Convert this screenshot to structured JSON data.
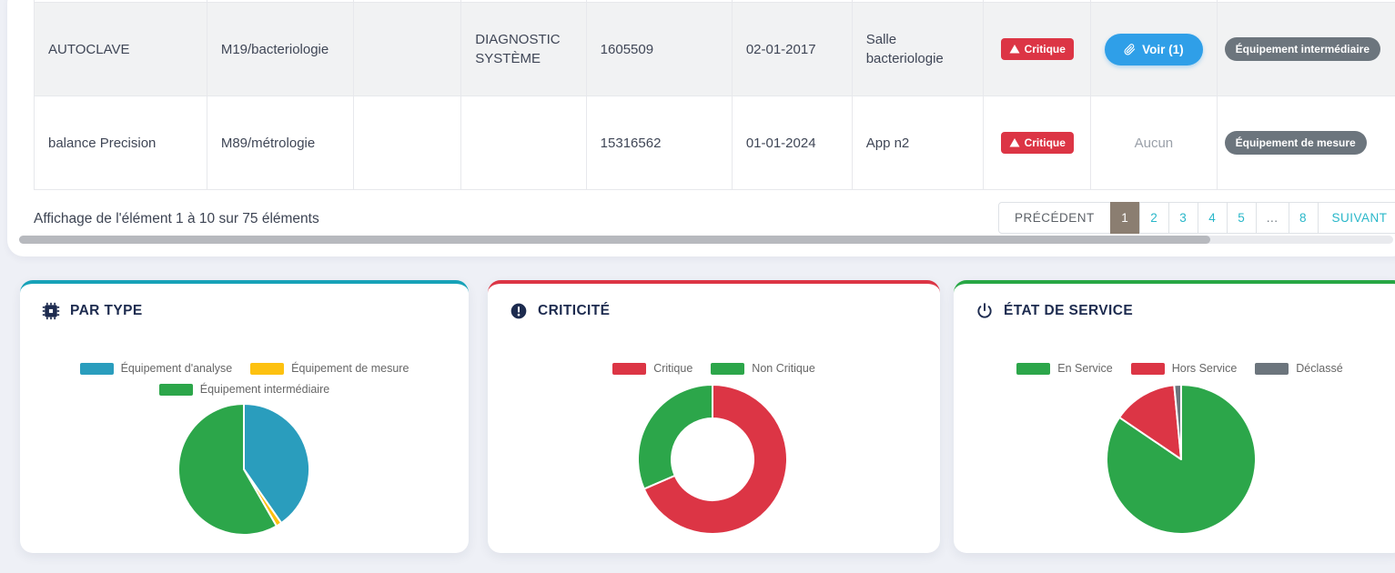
{
  "page": {
    "background_color": "#eef0f6"
  },
  "table": {
    "rows": [
      {
        "striped": true,
        "cells": [
          "AUTOCLAVE",
          "M19/bacteriologie",
          "",
          "DIAGNOSTIC SYSTÈME",
          "1605509",
          "02-01-2017",
          "Salle bacteriologie"
        ],
        "criticite": "Critique",
        "doc": {
          "kind": "button",
          "label": "Voir (1)"
        },
        "type_badge": "Équipement intermédiaire"
      },
      {
        "striped": false,
        "cells": [
          "balance Precision",
          "M89/métrologie",
          "",
          "",
          "15316562",
          "01-01-2024",
          "App n2"
        ],
        "criticite": "Critique",
        "doc": {
          "kind": "text",
          "label": "Aucun"
        },
        "type_badge": "Équipement de mesure"
      }
    ],
    "footer_info": "Affichage de l'élément 1 à 10 sur 75 éléments",
    "pagination": {
      "previous": "PRÉCÉDENT",
      "next": "SUIVANT",
      "pages": [
        "1",
        "2",
        "3",
        "4",
        "5",
        "...",
        "8"
      ],
      "active": "1"
    }
  },
  "icons": {
    "critique_badge": "warning-triangle-icon",
    "voir_button": "paperclip-icon",
    "card_type": "microchip-icon",
    "card_criticite": "exclamation-circle-icon",
    "card_etat": "power-icon"
  },
  "colors": {
    "accent_blue": "#2f9fe8",
    "badge_red": "#dc3545",
    "badge_gray": "#6c757d",
    "pagination_teal": "#29b7c9",
    "pagination_active": "#8b7e71",
    "card_type_border": "#17a2b8",
    "card_crit_border": "#dc3545",
    "card_etat_border": "#28a745"
  },
  "cards": [
    {
      "title": "PAR TYPE"
    },
    {
      "title": "CRITICITÉ"
    },
    {
      "title": "ÉTAT DE SERVICE"
    }
  ],
  "chart_data": [
    {
      "type": "pie",
      "title": "PAR TYPE",
      "labels": [
        "Équipement d'analyse",
        "Équipement de mesure",
        "Équipement intermédiaire"
      ],
      "values": [
        40.3,
        1.4,
        58.3
      ],
      "unit": "percent",
      "colors": [
        "#2a9dbd",
        "#fdc110",
        "#2ca64a"
      ],
      "legend_position": "top",
      "start_angle_deg": 0,
      "direction": "clockwise"
    },
    {
      "type": "donut",
      "title": "CRITICITÉ",
      "labels": [
        "Critique",
        "Non Critique"
      ],
      "values": [
        68.5,
        31.5
      ],
      "unit": "percent",
      "colors": [
        "#dc3545",
        "#2ca64a"
      ],
      "legend_position": "top",
      "start_angle_deg": 0,
      "direction": "clockwise"
    },
    {
      "type": "pie",
      "title": "ÉTAT DE SERVICE",
      "labels": [
        "En Service",
        "Hors Service",
        "Déclassé"
      ],
      "values": [
        84.5,
        14.0,
        1.5
      ],
      "unit": "percent",
      "colors": [
        "#2ca64a",
        "#dc3545",
        "#6c757d"
      ],
      "legend_position": "top",
      "start_angle_deg": 0,
      "direction": "clockwise"
    }
  ]
}
